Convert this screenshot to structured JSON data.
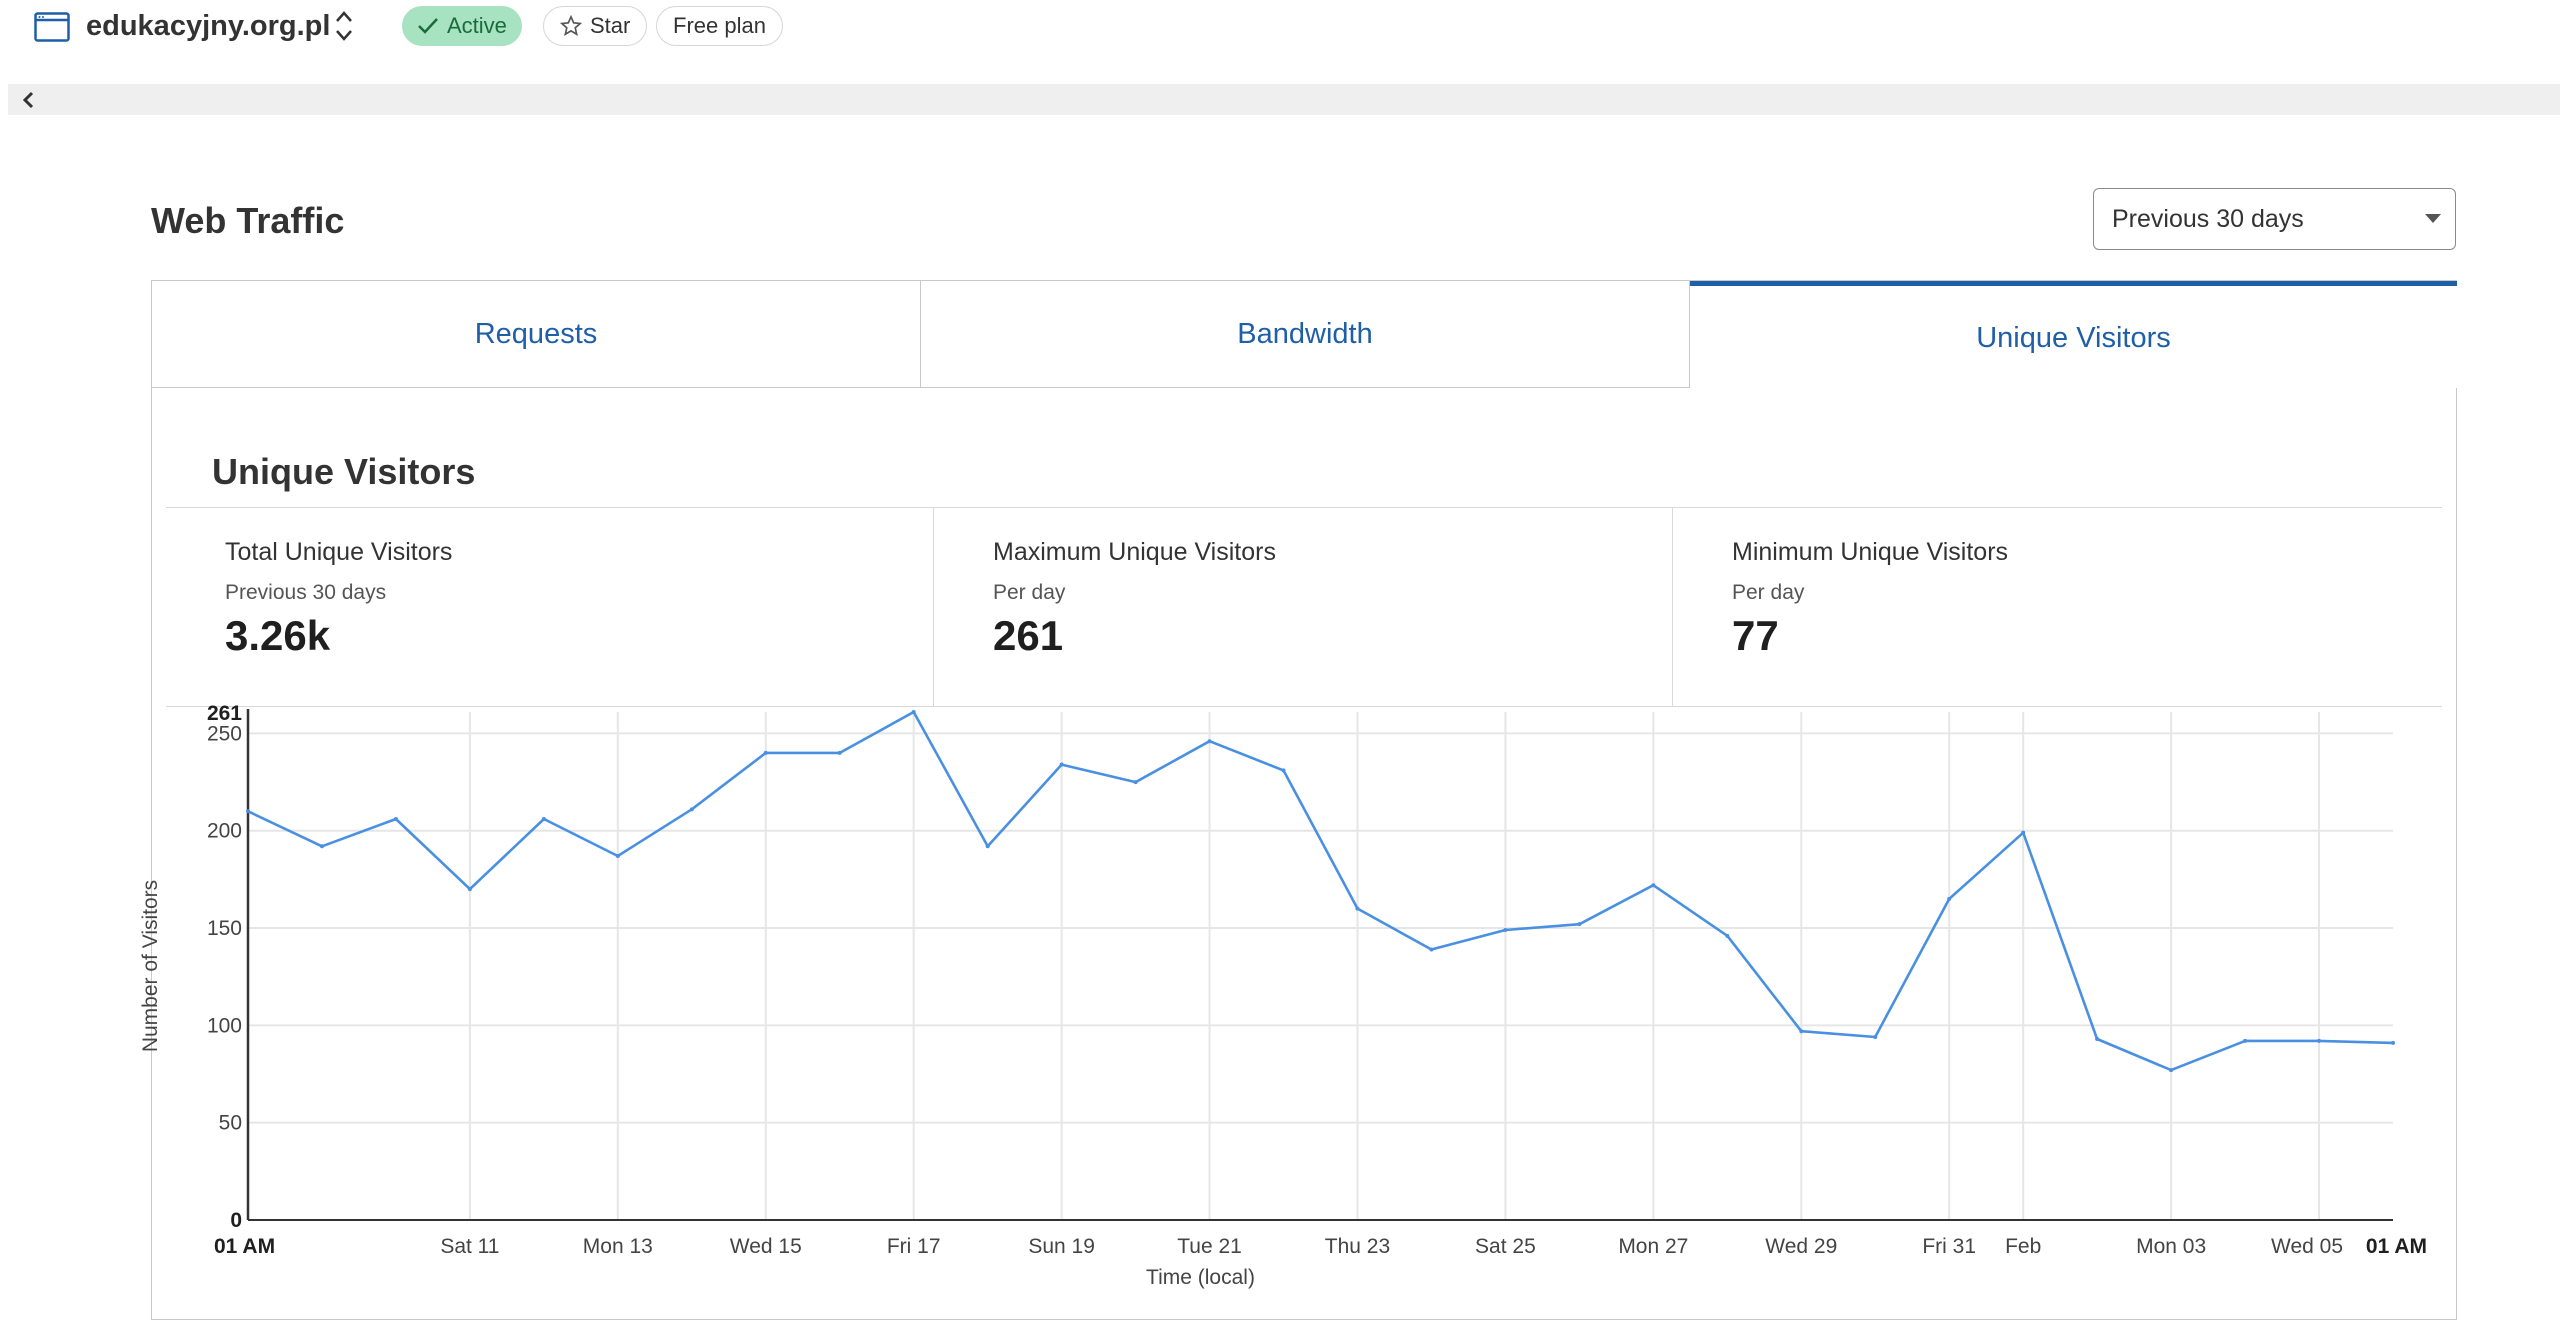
{
  "header": {
    "site_name": "edukacyjny.org.pl",
    "status_label": "Active",
    "star_label": "Star",
    "plan_label": "Free plan"
  },
  "section": {
    "title": "Web Traffic",
    "range_value": "Previous 30 days"
  },
  "tabs": [
    {
      "label": "Requests"
    },
    {
      "label": "Bandwidth"
    },
    {
      "label": "Unique Visitors",
      "active": true
    }
  ],
  "panel": {
    "title": "Unique Visitors",
    "stats": [
      {
        "label": "Total Unique Visitors",
        "sub": "Previous 30 days",
        "value": "3.26k"
      },
      {
        "label": "Maximum Unique Visitors",
        "sub": "Per day",
        "value": "261"
      },
      {
        "label": "Minimum Unique Visitors",
        "sub": "Per day",
        "value": "77"
      }
    ]
  },
  "chart_data": {
    "type": "line",
    "xlabel": "Time (local)",
    "ylabel": "Number of Visitors",
    "ylim": [
      0,
      261
    ],
    "y_ticks": [
      0,
      50,
      100,
      150,
      200,
      250
    ],
    "y_max_label": "261",
    "grid": true,
    "line_color": "#4a90e2",
    "x_ticks": [
      {
        "label": "01 AM",
        "day": 0,
        "bold": true
      },
      {
        "label": "Sat 11",
        "day": 3
      },
      {
        "label": "Mon 13",
        "day": 5
      },
      {
        "label": "Wed 15",
        "day": 7
      },
      {
        "label": "Fri 17",
        "day": 9
      },
      {
        "label": "Sun 19",
        "day": 11
      },
      {
        "label": "Tue 21",
        "day": 13
      },
      {
        "label": "Thu 23",
        "day": 15
      },
      {
        "label": "Sat 25",
        "day": 17
      },
      {
        "label": "Mon 27",
        "day": 19
      },
      {
        "label": "Wed 29",
        "day": 21
      },
      {
        "label": "Fri 31",
        "day": 23
      },
      {
        "label": "Feb",
        "day": 24
      },
      {
        "label": "Mon 03",
        "day": 26
      },
      {
        "label": "Wed 05",
        "day": 28
      },
      {
        "label": "01 AM",
        "day": 29,
        "bold": true
      }
    ],
    "series": [
      {
        "values": [
          210,
          192,
          206,
          170,
          206,
          187,
          211,
          240,
          240,
          261,
          192,
          234,
          225,
          246,
          231,
          160,
          139,
          149,
          152,
          172,
          146,
          97,
          94,
          165,
          199,
          93,
          77,
          92,
          92,
          91
        ]
      }
    ]
  }
}
